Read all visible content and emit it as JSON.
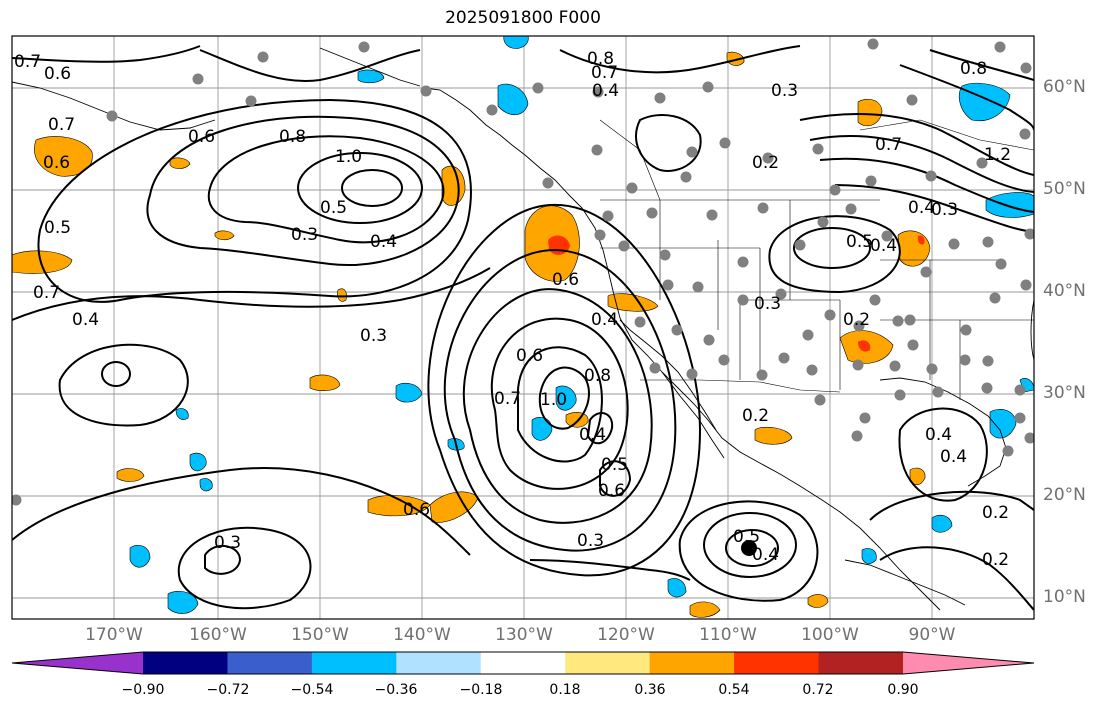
{
  "title": "2025091800 F000",
  "map": {
    "lon_ticks": [
      "170°W",
      "160°W",
      "150°W",
      "140°W",
      "130°W",
      "120°W",
      "110°W",
      "100°W",
      "90°W"
    ],
    "lat_ticks": [
      "60°N",
      "50°N",
      "40°N",
      "30°N",
      "20°N",
      "10°N"
    ],
    "contour_labels": [
      "0.7",
      "0.6",
      "0.7",
      "0.6",
      "0.5",
      "0.7",
      "0.4",
      "0.8",
      "1.0",
      "0.6",
      "0.3",
      "0.5",
      "0.4",
      "0.3",
      "0.3",
      "0.6",
      "0.7",
      "0.6",
      "1.0",
      "0.8",
      "0.4",
      "0.6",
      "0.4",
      "0.5",
      "0.6",
      "0.3",
      "0.3",
      "0.4",
      "0.5",
      "0.2",
      "0.2",
      "0.3",
      "0.5",
      "0.4",
      "0.2",
      "0.8",
      "0.7",
      "0.8",
      "0.4",
      "0.3",
      "0.7",
      "1.2",
      "0.4",
      "0.2",
      "0.2",
      "0.4",
      "0.4"
    ],
    "accent_colors": {
      "orange": "#ffa500",
      "red": "#ff3300",
      "light_blue": "#00bfff",
      "station_dot": "#808080",
      "contour": "#000000"
    }
  },
  "colorbar": {
    "tick_labels": [
      "−0.90",
      "−0.72",
      "−0.54",
      "−0.36",
      "−0.18",
      "0.18",
      "0.36",
      "0.54",
      "0.72",
      "0.90"
    ],
    "colors": [
      "#9932cc",
      "#000080",
      "#3a5fcd",
      "#00bfff",
      "#b0e2ff",
      "#ffffff",
      "#ffe97f",
      "#ffa500",
      "#ff3300",
      "#b22222",
      "#ff8cb0"
    ]
  }
}
